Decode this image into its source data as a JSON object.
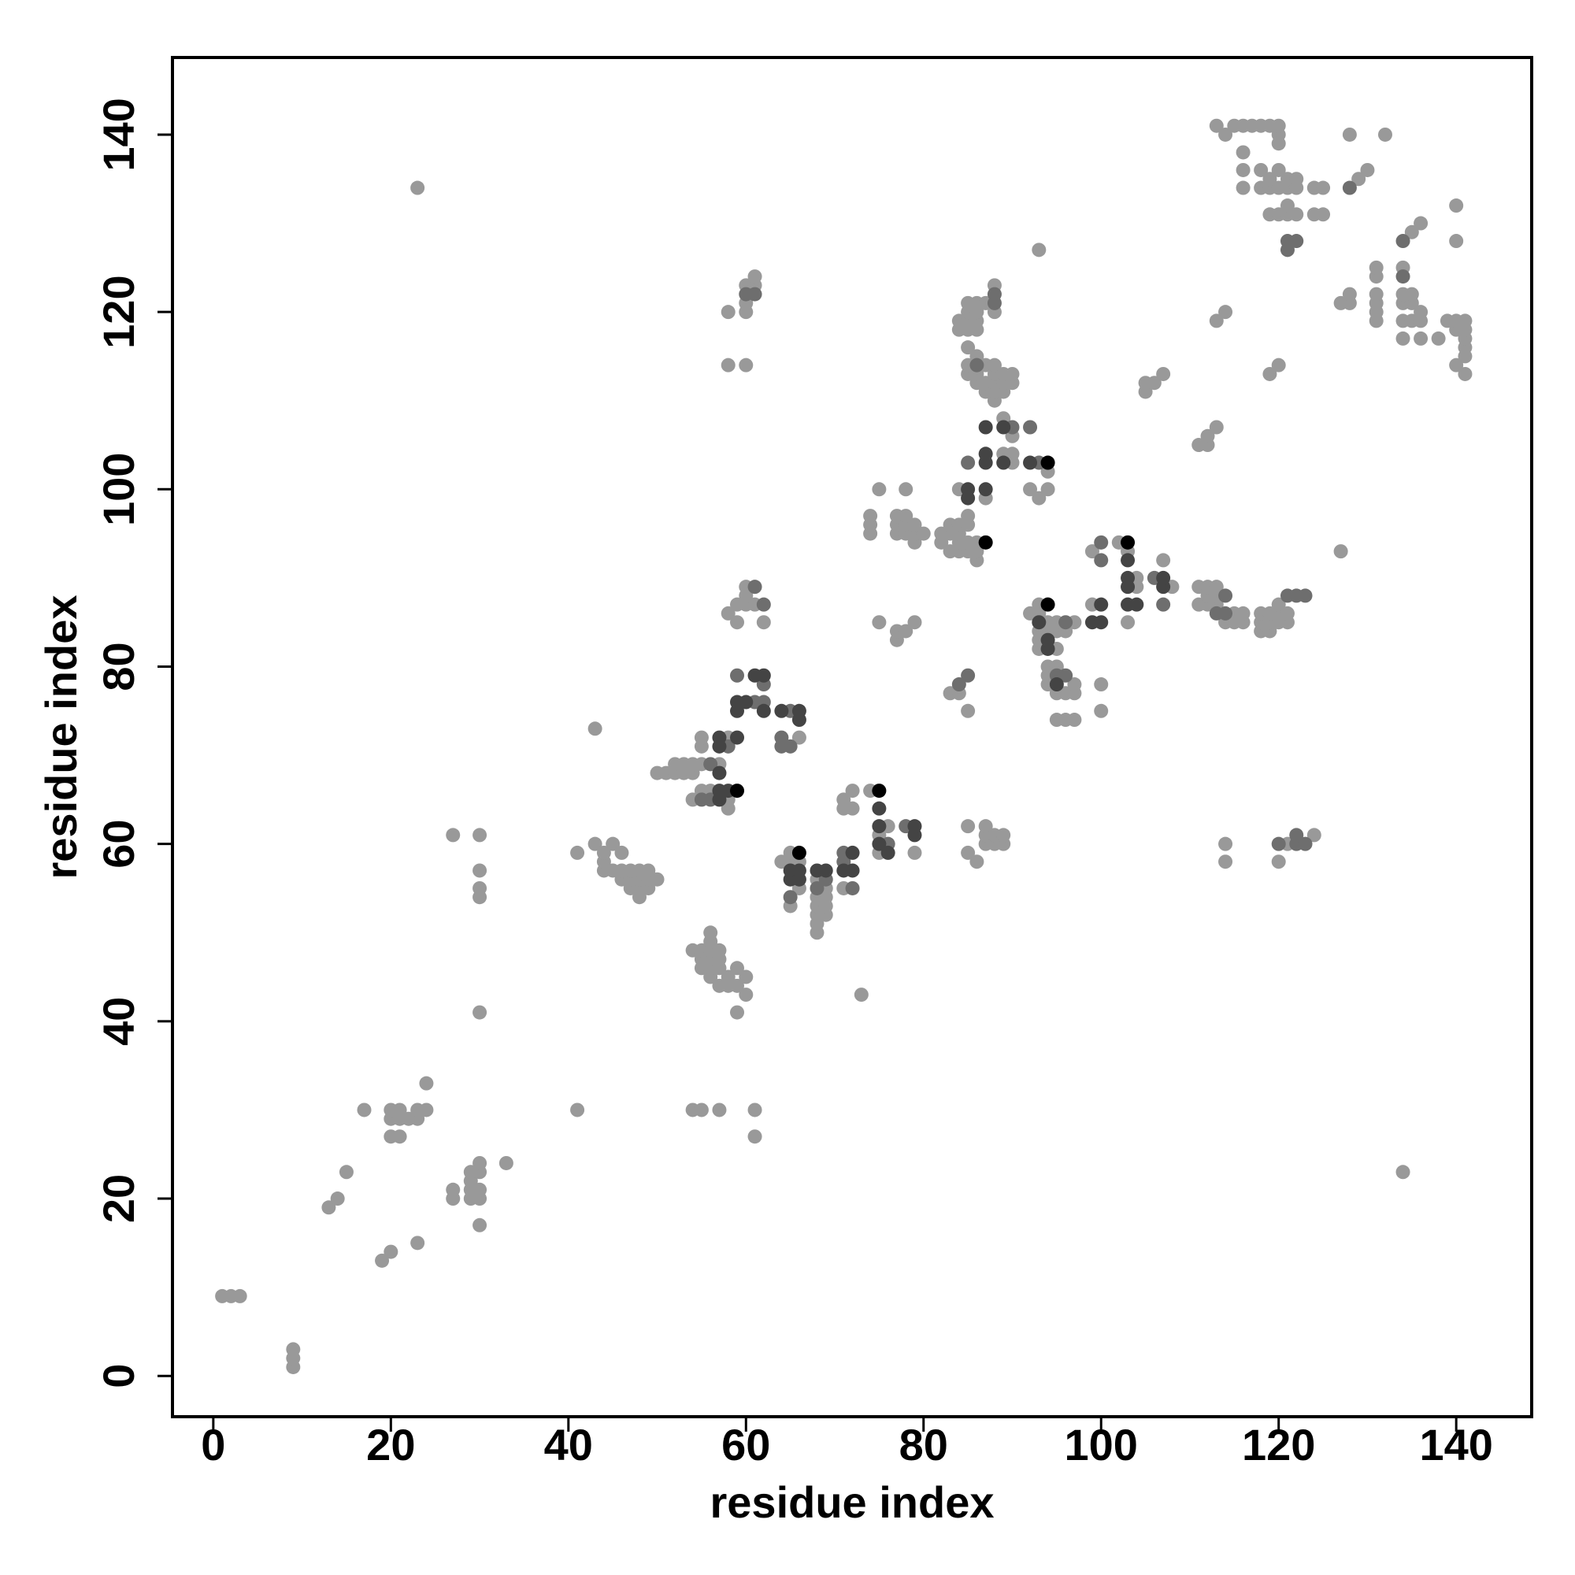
{
  "chart_data": {
    "type": "scatter",
    "xlabel": "residue index",
    "ylabel": "residue index",
    "xlim": [
      -4.6,
      148.5
    ],
    "ylim": [
      -4.6,
      148.7
    ],
    "xticks": [
      0,
      20,
      40,
      60,
      80,
      100,
      120,
      140
    ],
    "yticks": [
      0,
      20,
      40,
      60,
      80,
      100,
      120,
      140
    ],
    "grid": false,
    "series": [
      {
        "color": "#999999",
        "x": [
          1,
          2,
          3,
          9,
          9,
          9,
          13,
          14,
          15,
          17,
          19,
          20,
          23,
          20,
          20,
          20,
          21,
          21,
          21,
          22,
          23,
          23,
          24,
          24,
          23,
          27,
          27,
          27,
          29,
          29,
          29,
          29,
          30,
          30,
          30,
          30,
          30,
          30,
          30,
          30,
          30,
          30,
          33,
          41,
          41,
          43,
          43,
          44,
          44,
          44,
          45,
          45,
          46,
          46,
          46,
          47,
          47,
          47,
          48,
          48,
          48,
          48,
          49,
          49,
          49,
          50,
          50,
          51,
          52,
          52,
          53,
          53,
          54,
          54,
          54,
          55,
          55,
          55,
          55,
          56,
          58,
          58,
          58,
          57,
          54,
          54,
          55,
          57,
          55,
          55,
          55,
          56,
          56,
          56,
          56,
          56,
          56,
          57,
          57,
          57,
          57,
          58,
          58,
          59,
          59,
          59,
          60,
          60,
          61,
          61,
          58,
          58,
          58,
          59,
          59,
          60,
          60,
          60,
          60,
          60,
          60,
          60,
          61,
          61,
          61,
          62,
          66,
          64,
          65,
          65,
          65,
          66,
          66,
          68,
          68,
          68,
          68,
          68,
          68,
          69,
          69,
          69,
          69,
          71,
          73,
          71,
          71,
          72,
          72,
          74,
          75,
          75,
          76,
          79,
          75,
          75,
          74,
          74,
          74,
          77,
          77,
          77,
          77,
          77,
          78,
          78,
          78,
          78,
          78,
          79,
          79,
          79,
          79,
          80,
          83,
          84,
          85,
          82,
          82,
          83,
          83,
          83,
          84,
          84,
          84,
          84,
          84,
          85,
          85,
          85,
          85,
          86,
          86,
          86,
          87,
          89,
          89,
          90,
          90,
          90,
          92,
          93,
          94,
          94,
          93,
          84,
          84,
          85,
          85,
          85,
          85,
          85,
          85,
          85,
          86,
          86,
          86,
          86,
          86,
          86,
          86,
          87,
          87,
          87,
          87,
          88,
          88,
          88,
          88,
          88,
          88,
          88,
          89,
          89,
          89,
          90,
          90,
          85,
          85,
          86,
          87,
          87,
          87,
          88,
          88,
          89,
          89,
          92,
          93,
          93,
          93,
          93,
          93,
          94,
          94,
          94,
          94,
          94,
          95,
          95,
          95,
          95,
          95,
          95,
          96,
          96,
          96,
          97,
          97,
          97,
          97,
          99,
          99,
          100,
          100,
          103,
          104,
          104,
          107,
          108,
          102,
          103,
          111,
          111,
          112,
          112,
          112,
          113,
          113,
          113,
          114,
          115,
          115,
          116,
          116,
          118,
          118,
          118,
          119,
          119,
          119,
          120,
          120,
          120,
          121,
          121,
          127,
          114,
          114,
          120,
          121,
          124,
          105,
          105,
          106,
          107,
          111,
          112,
          112,
          113,
          113,
          114,
          119,
          120,
          113,
          114,
          115,
          116,
          116,
          117,
          118,
          119,
          120,
          120,
          116,
          116,
          118,
          118,
          119,
          119,
          119,
          120,
          120,
          120,
          120,
          121,
          121,
          121,
          121,
          122,
          122,
          122,
          124,
          124,
          125,
          125,
          129,
          130,
          128,
          132,
          127,
          128,
          128,
          131,
          131,
          131,
          131,
          131,
          131,
          134,
          134,
          134,
          134,
          134,
          135,
          135,
          135,
          135,
          136,
          136,
          136,
          136,
          138,
          139,
          140,
          140,
          140,
          140,
          140,
          141,
          141,
          141,
          141,
          141,
          141,
          134
        ],
        "values": [
          9,
          9,
          9,
          1,
          2,
          3,
          19,
          20,
          23,
          30,
          13,
          14,
          15,
          29,
          30,
          27,
          27,
          29,
          30,
          29,
          29,
          30,
          30,
          33,
          134,
          20,
          21,
          61,
          20,
          21,
          22,
          23,
          20,
          21,
          23,
          24,
          17,
          41,
          54,
          55,
          57,
          61,
          24,
          30,
          59,
          60,
          73,
          57,
          58,
          59,
          57,
          60,
          56,
          57,
          59,
          55,
          56,
          57,
          54,
          55,
          56,
          57,
          55,
          56,
          57,
          56,
          68,
          68,
          68,
          69,
          68,
          69,
          65,
          68,
          69,
          66,
          69,
          71,
          72,
          66,
          64,
          65,
          72,
          69,
          48,
          30,
          30,
          30,
          46,
          47,
          48,
          45,
          46,
          47,
          48,
          49,
          50,
          44,
          46,
          47,
          48,
          44,
          45,
          41,
          44,
          46,
          43,
          45,
          27,
          30,
          86,
          114,
          120,
          85,
          87,
          87,
          88,
          89,
          114,
          120,
          121,
          123,
          87,
          123,
          124,
          85,
          72,
          58,
          53,
          58,
          59,
          55,
          58,
          50,
          51,
          52,
          53,
          54,
          56,
          52,
          53,
          54,
          55,
          55,
          43,
          64,
          65,
          64,
          66,
          66,
          59,
          61,
          62,
          59,
          85,
          100,
          95,
          96,
          97,
          83,
          84,
          95,
          96,
          97,
          84,
          95,
          96,
          97,
          100,
          85,
          94,
          95,
          96,
          95,
          77,
          77,
          75,
          94,
          95,
          93,
          95,
          96,
          93,
          94,
          95,
          96,
          100,
          93,
          94,
          96,
          97,
          92,
          93,
          94,
          99,
          104,
          108,
          103,
          104,
          106,
          100,
          99,
          100,
          102,
          127,
          118,
          119,
          113,
          114,
          116,
          118,
          119,
          120,
          121,
          112,
          113,
          115,
          118,
          119,
          120,
          121,
          111,
          112,
          114,
          121,
          110,
          111,
          112,
          113,
          114,
          120,
          123,
          111,
          112,
          113,
          112,
          113,
          59,
          62,
          58,
          60,
          61,
          62,
          60,
          61,
          60,
          61,
          86,
          82,
          83,
          84,
          86,
          87,
          78,
          79,
          80,
          84,
          85,
          74,
          77,
          80,
          82,
          84,
          85,
          74,
          77,
          84,
          74,
          77,
          78,
          85,
          87,
          93,
          75,
          78,
          85,
          89,
          90,
          92,
          89,
          94,
          93,
          87,
          89,
          87,
          88,
          89,
          87,
          88,
          89,
          85,
          85,
          86,
          85,
          86,
          84,
          85,
          86,
          84,
          85,
          86,
          85,
          86,
          87,
          85,
          86,
          93,
          58,
          60,
          58,
          60,
          61,
          111,
          112,
          112,
          113,
          105,
          105,
          106,
          107,
          119,
          120,
          113,
          114,
          141,
          140,
          141,
          138,
          141,
          141,
          141,
          141,
          140,
          141,
          134,
          136,
          134,
          136,
          131,
          134,
          135,
          131,
          134,
          136,
          139,
          131,
          132,
          134,
          135,
          131,
          134,
          135,
          131,
          134,
          131,
          134,
          135,
          136,
          140,
          140,
          121,
          121,
          122,
          119,
          120,
          121,
          122,
          124,
          125,
          117,
          119,
          121,
          122,
          125,
          119,
          121,
          122,
          129,
          117,
          119,
          120,
          130,
          117,
          119,
          114,
          118,
          119,
          128,
          132,
          113,
          115,
          116,
          117,
          118,
          119,
          23
        ]
      },
      {
        "color": "#6e6e6e",
        "x": [
          59,
          61,
          61,
          62,
          60,
          61,
          121,
          121,
          122,
          128,
          134,
          134,
          88,
          88,
          86,
          85,
          93,
          90,
          92,
          113,
          114,
          114,
          121,
          122,
          123,
          122,
          123,
          122,
          120,
          85,
          84,
          76,
          78,
          71,
          71,
          72,
          69,
          68,
          65,
          96,
          95,
          96,
          100,
          106,
          107,
          100,
          65,
          62,
          62,
          56,
          55,
          56,
          58,
          64,
          65,
          64
        ],
        "values": [
          79,
          76,
          89,
          87,
          122,
          122,
          127,
          128,
          128,
          134,
          128,
          124,
          121,
          122,
          114,
          103,
          103,
          107,
          107,
          86,
          86,
          88,
          88,
          88,
          88,
          60,
          60,
          61,
          60,
          79,
          78,
          60,
          62,
          59,
          58,
          55,
          56,
          55,
          54,
          79,
          79,
          85,
          92,
          90,
          87,
          94,
          75,
          76,
          78,
          69,
          65,
          65,
          71,
          71,
          71,
          72
        ]
      },
      {
        "color": "#444444",
        "x": [
          57,
          57,
          57,
          57,
          57,
          58,
          59,
          59,
          59,
          60,
          61,
          62,
          62,
          64,
          66,
          66,
          65,
          65,
          66,
          66,
          68,
          69,
          71,
          72,
          72,
          75,
          75,
          75,
          76,
          79,
          79,
          87,
          87,
          87,
          89,
          89,
          92,
          85,
          85,
          87,
          93,
          94,
          95,
          94,
          99,
          100,
          100,
          103,
          103,
          103,
          103,
          104,
          107,
          107
        ],
        "values": [
          65,
          66,
          68,
          71,
          72,
          66,
          72,
          75,
          76,
          76,
          79,
          79,
          75,
          75,
          74,
          75,
          56,
          57,
          56,
          57,
          57,
          57,
          57,
          57,
          59,
          62,
          64,
          60,
          59,
          61,
          62,
          103,
          104,
          107,
          103,
          107,
          103,
          99,
          100,
          100,
          85,
          82,
          78,
          83,
          85,
          85,
          87,
          89,
          90,
          92,
          87,
          87,
          89,
          90
        ]
      },
      {
        "color": "#000000",
        "x": [
          59,
          66,
          75,
          87,
          94,
          94,
          103
        ],
        "values": [
          66,
          59,
          66,
          94,
          103,
          87,
          94
        ]
      }
    ]
  }
}
